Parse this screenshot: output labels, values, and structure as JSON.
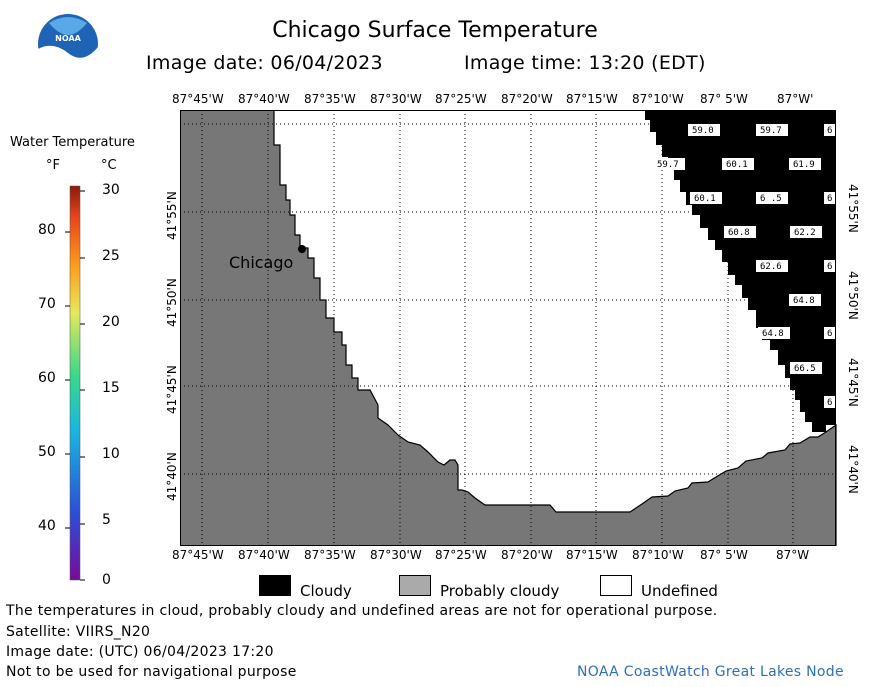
{
  "header": {
    "title": "Chicago Surface Temperature",
    "image_date": "Image date: 06/04/2023",
    "image_time": "Image time: 13:20 (EDT)"
  },
  "logo": {
    "text": "NOAA"
  },
  "colorbar": {
    "title": "Water Temperature",
    "unit_f": "°F",
    "unit_c": "°C",
    "f_ticks": [
      "80",
      "70",
      "60",
      "50",
      "40"
    ],
    "c_ticks": [
      "30",
      "25",
      "20",
      "15",
      "10",
      "5",
      "0"
    ],
    "colors": [
      "#7a0a9a",
      "#2a4fd8",
      "#19b7e0",
      "#39d98a",
      "#e7e85a",
      "#ff9a1a",
      "#e8461a",
      "#8a1a0a"
    ]
  },
  "map": {
    "lon_labels": [
      "87°45'W",
      "87°40'W",
      "87°35'W",
      "87°30'W",
      "87°25'W",
      "87°20'W",
      "87°15'W",
      "87°10'W",
      "87° 5'W",
      "87°W"
    ],
    "top_last_label": "87°W'",
    "lat_labels": [
      "41°55'N",
      "41°50'N",
      "41°45'N",
      "41°40'N"
    ],
    "city": "Chicago",
    "land_color": "#777777",
    "cloud_color": "#000000",
    "undefined_color": "#ffffff",
    "sst_labels": [
      "59.0",
      "59.7",
      "6",
      "59.7",
      "60.1",
      "61.9",
      "60.1",
      "6 .5",
      "6",
      "60.8",
      "62.2",
      "62.6",
      "6",
      "64.8",
      "64.8",
      "6",
      "66.5",
      "6"
    ]
  },
  "legend": {
    "items": [
      {
        "label": "Cloudy",
        "color": "#000000"
      },
      {
        "label": "Probably cloudy",
        "color": "#aaaaaa"
      },
      {
        "label": "Undefined",
        "color": "#ffffff"
      }
    ]
  },
  "footer": {
    "disclaimer": "The temperatures in cloud, probably cloudy and undefined areas are not for operational purpose.",
    "satellite": "Satellite: VIIRS_N20",
    "utc_date": "Image date: (UTC) 06/04/2023  17:20",
    "navigation": "Not to be used for navigational purpose",
    "credit": "NOAA CoastWatch Great Lakes Node"
  }
}
